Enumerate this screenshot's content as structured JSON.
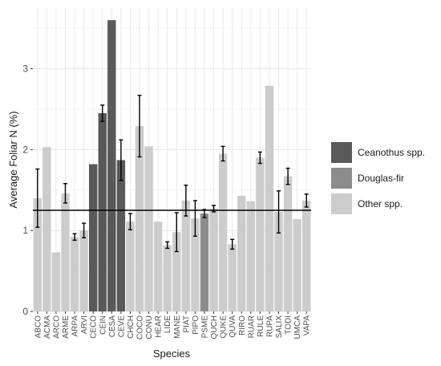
{
  "chart_data": {
    "type": "bar",
    "xlabel": "Species",
    "ylabel": "Average Foliar N (%)",
    "ylim": [
      0,
      3.75
    ],
    "yticks": [
      0,
      1,
      2,
      3
    ],
    "reference_line": 1.25,
    "grid": true,
    "legend_position": "right",
    "groups": [
      {
        "name": "Ceanothus spp.",
        "color": "#595959"
      },
      {
        "name": "Douglas-fir",
        "color": "#8c8c8c"
      },
      {
        "name": "Other spp.",
        "color": "#cccccc"
      }
    ],
    "categories": [
      "ABCO",
      "ACMA",
      "ARCO",
      "ARME",
      "ARPA",
      "ARVI",
      "CECO",
      "CEIN",
      "CESA",
      "CEVE",
      "CHCH",
      "COCO",
      "CONU",
      "HEAR",
      "LIDE",
      "MANE",
      "PIAT",
      "PIPO",
      "PSME",
      "QUCH",
      "QUKE",
      "QUVA",
      "RIRO",
      "RUAR",
      "RULE",
      "RUPA",
      "SALIX",
      "TODI",
      "UMCA",
      "VAPA"
    ],
    "values": [
      1.4,
      2.03,
      0.73,
      1.46,
      0.92,
      1.0,
      1.82,
      2.45,
      3.6,
      1.87,
      1.11,
      2.29,
      2.04,
      1.11,
      0.82,
      0.98,
      1.37,
      1.15,
      1.21,
      1.27,
      1.95,
      0.83,
      1.43,
      1.36,
      1.9,
      2.79,
      1.23,
      1.67,
      1.14,
      1.37
    ],
    "errors": [
      0.36,
      null,
      null,
      0.12,
      0.04,
      0.09,
      null,
      0.1,
      null,
      0.25,
      0.1,
      0.38,
      null,
      null,
      0.04,
      0.24,
      0.19,
      0.22,
      0.05,
      0.04,
      0.09,
      0.06,
      null,
      null,
      0.07,
      null,
      0.26,
      0.1,
      null,
      0.08
    ],
    "group_index": [
      2,
      2,
      2,
      2,
      2,
      2,
      0,
      0,
      0,
      0,
      2,
      2,
      2,
      2,
      2,
      2,
      2,
      2,
      1,
      2,
      2,
      2,
      2,
      2,
      2,
      2,
      2,
      2,
      2,
      2
    ]
  }
}
